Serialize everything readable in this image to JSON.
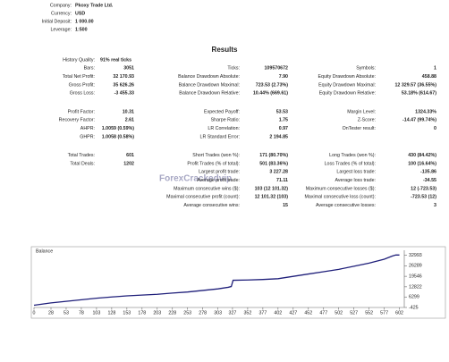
{
  "header": {
    "rows": [
      [
        "Company:",
        "Pkoxy Trade Ltd."
      ],
      [
        "Currency:",
        "USD"
      ],
      [
        "Initial Deposit:",
        "1 000.00"
      ],
      [
        "Leverage:",
        "1:500"
      ]
    ]
  },
  "results": {
    "title": "Results",
    "sections": [
      {
        "rows": [
          {
            "left": [
              "History Quality:",
              "91% real ticks"
            ]
          },
          {
            "left": [
              "Bars:",
              "3051"
            ],
            "middle": [
              "Ticks:",
              "109570672"
            ],
            "right": [
              "Symbols:",
              "1"
            ]
          },
          {
            "left": [
              "Total Net Profit:",
              "32 170.93"
            ],
            "middle": [
              "Balance Drawdown Absolute:",
              "7.90"
            ],
            "right": [
              "Equity Drawdown Absolute:",
              "458.88"
            ]
          },
          {
            "left": [
              "Gross Profit:",
              "35 626.26"
            ],
            "middle": [
              "Balance Drawdown Maximal:",
              "723.53 (2.73%)"
            ],
            "right": [
              "Equity Drawdown Maximal:",
              "12 329.57 (36.55%)"
            ]
          },
          {
            "left": [
              "Gross Loss:",
              "-3 455.33"
            ],
            "middle": [
              "Balance Drawdown Relative:",
              "10.44% (669.61)"
            ],
            "right": [
              "Equity Drawdown Relative:",
              "53.18% (614.67)"
            ]
          }
        ]
      },
      {
        "rows": [
          {
            "left": [
              "Profit Factor:",
              "10.31"
            ],
            "middle": [
              "Expected Payoff:",
              "53.53"
            ],
            "right": [
              "Margin Level:",
              "1324.33%"
            ]
          },
          {
            "left": [
              "Recovery Factor:",
              "2.61"
            ],
            "middle": [
              "Sharpe Ratio:",
              "1.75"
            ],
            "right": [
              "Z-Score:",
              "-14.47 (99.74%)"
            ]
          },
          {
            "left": [
              "AHPR:",
              "1.0059 (0.59%)"
            ],
            "middle": [
              "LR Correlation:",
              "0.97"
            ],
            "right": [
              "OnTester result:",
              "0"
            ]
          },
          {
            "left": [
              "GHPR:",
              "1.0058 (0.58%)"
            ],
            "middle": [
              "LR Standard Error:",
              "2 194.85"
            ]
          }
        ]
      },
      {
        "rows": [
          {
            "left": [
              "Total Trades:",
              "601"
            ],
            "middle": [
              "Short Trades (won %):",
              "171 (80.70%)"
            ],
            "right": [
              "Long Trades (won %):",
              "430 (84.42%)"
            ]
          },
          {
            "left": [
              "Total Deals:",
              "1202"
            ],
            "middle": [
              "Profit Trades (% of total):",
              "501 (83.36%)"
            ],
            "right": [
              "Loss Trades (% of total):",
              "100 (16.64%)"
            ]
          },
          {
            "middle": [
              "Largest profit trade:",
              "3 227.28"
            ],
            "right": [
              "Largest loss trade:",
              "-135.86"
            ]
          },
          {
            "middle": [
              "Average profit trade:",
              "71.11"
            ],
            "right": [
              "Average loss trade:",
              "-34.55"
            ]
          },
          {
            "middle": [
              "Maximum consecutive wins ($):",
              "103 (12 101.32)"
            ],
            "right": [
              "Maximum consecutive losses ($):",
              "12 (-723.53)"
            ]
          },
          {
            "middle": [
              "Maximal consecutive profit (count):",
              "12 101.32 (103)"
            ],
            "right": [
              "Maximal consecutive loss (count):",
              "-723.53 (12)"
            ]
          },
          {
            "middle": [
              "Average consecutive wins:",
              "15"
            ],
            "right": [
              "Average consecutive losses:",
              "3"
            ]
          }
        ]
      }
    ]
  },
  "watermark": "ForexCrackedvip",
  "chart_data": {
    "type": "line",
    "title": "Balance",
    "x": [
      0,
      28,
      53,
      78,
      103,
      128,
      153,
      178,
      203,
      228,
      253,
      278,
      303,
      320,
      325,
      328,
      352,
      377,
      402,
      427,
      452,
      477,
      502,
      527,
      552,
      577,
      590,
      596,
      602
    ],
    "series": [
      {
        "name": "Balance",
        "color": "#1f1f7a",
        "values": [
          1000,
          2500,
          3500,
          4500,
          5500,
          6300,
          7000,
          7500,
          8000,
          8800,
          9500,
          10500,
          11500,
          12500,
          13000,
          17000,
          17200,
          17500,
          18000,
          19500,
          21000,
          22500,
          24000,
          26000,
          28000,
          30500,
          32500,
          33200,
          33170.93
        ]
      }
    ],
    "xlim": [
      0,
      610
    ],
    "ylim": [
      -425,
      34500
    ],
    "xticks": [
      0,
      28,
      53,
      78,
      103,
      128,
      153,
      178,
      203,
      228,
      253,
      278,
      303,
      327,
      352,
      377,
      402,
      427,
      452,
      477,
      502,
      527,
      552,
      577,
      602
    ],
    "yticks": [
      -425,
      6299,
      12822,
      19546,
      26289,
      32993
    ]
  }
}
